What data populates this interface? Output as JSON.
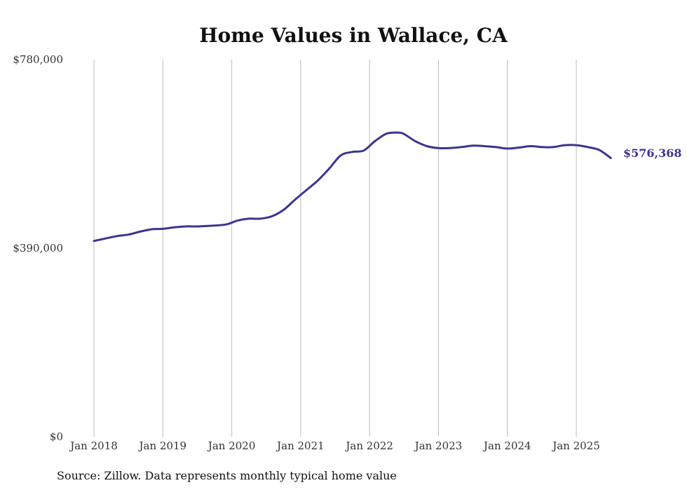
{
  "chart_data": {
    "type": "line",
    "title": "Home Values in Wallace, CA",
    "source": "Source: Zillow. Data represents monthly typical home value",
    "ylim": [
      0,
      780000
    ],
    "y_ticks": [
      {
        "value": 780000,
        "label": "$780,000"
      },
      {
        "value": 390000,
        "label": "$390,000"
      },
      {
        "value": 0,
        "label": "$0"
      }
    ],
    "x_ticks": [
      {
        "value": "2018-01",
        "label": "Jan 2018"
      },
      {
        "value": "2019-01",
        "label": "Jan 2019"
      },
      {
        "value": "2020-01",
        "label": "Jan 2020"
      },
      {
        "value": "2021-01",
        "label": "Jan 2021"
      },
      {
        "value": "2022-01",
        "label": "Jan 2022"
      },
      {
        "value": "2023-01",
        "label": "Jan 2023"
      },
      {
        "value": "2024-01",
        "label": "Jan 2024"
      },
      {
        "value": "2025-01",
        "label": "Jan 2025"
      }
    ],
    "grid": "vertical",
    "line_color": "#3b3592",
    "end_label": "$576,368",
    "series": [
      {
        "x": [
          "2018-01",
          "2018-03",
          "2018-05",
          "2018-07",
          "2018-09",
          "2018-11",
          "2019-01",
          "2019-03",
          "2019-05",
          "2019-07",
          "2019-09",
          "2019-12",
          "2020-02",
          "2020-04",
          "2020-06",
          "2020-08",
          "2020-10",
          "2020-12",
          "2021-02",
          "2021-04",
          "2021-06",
          "2021-08",
          "2021-10",
          "2021-12",
          "2022-02",
          "2022-04",
          "2022-06",
          "2022-07",
          "2022-09",
          "2022-11",
          "2023-01",
          "2023-03",
          "2023-05",
          "2023-07",
          "2023-09",
          "2023-11",
          "2024-01",
          "2024-03",
          "2024-05",
          "2024-07",
          "2024-09",
          "2024-11",
          "2025-01",
          "2025-03",
          "2025-05",
          "2025-07"
        ],
        "values": [
          405000,
          410000,
          415000,
          418000,
          424000,
          429000,
          430000,
          433000,
          435000,
          435000,
          436000,
          439000,
          447000,
          451000,
          451000,
          456000,
          469000,
          490000,
          510000,
          530000,
          555000,
          582000,
          589000,
          592000,
          612000,
          627000,
          629000,
          626000,
          611000,
          601000,
          597000,
          597000,
          599000,
          602000,
          601000,
          599000,
          596000,
          598000,
          601000,
          599000,
          599000,
          603000,
          603000,
          599000,
          593000,
          576368
        ]
      }
    ]
  }
}
